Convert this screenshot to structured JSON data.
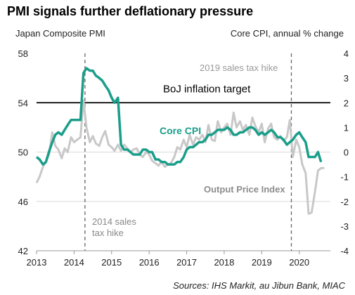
{
  "title": "PMI signals further deflationary pressure",
  "left_axis_label": "Japan Composite PMI",
  "right_axis_label": "Core CPI, annual % change",
  "source": "Sources: IHS Markit, au Jibun Bank, MIAC",
  "colors": {
    "core_cpi": "#1a9e8a",
    "output_price": "#c8c8c8",
    "target": "#000000",
    "events": "#666666",
    "grid": "#d9d9d9"
  },
  "chart_data": {
    "type": "line",
    "title": "PMI signals further deflationary pressure",
    "xlabel": "",
    "ylabel_left": "Japan Composite PMI",
    "ylabel_right": "Core CPI, annual % change",
    "xlim": [
      2013.0,
      2020.83
    ],
    "ylim_left": [
      42,
      58
    ],
    "ylim_right": [
      -4,
      4
    ],
    "yticks_left": [
      42,
      46,
      50,
      54,
      58
    ],
    "yticks_right": [
      -4,
      -3,
      -2,
      -1,
      0,
      1,
      2,
      3,
      4
    ],
    "xticks": [
      2013,
      2014,
      2015,
      2016,
      2017,
      2018,
      2019,
      2020
    ],
    "grid": "horizontal",
    "legend": "inline labels",
    "series": [
      {
        "name": "Core CPI",
        "axis": "right",
        "points": [
          [
            2013.0,
            -0.2
          ],
          [
            2013.08,
            -0.3
          ],
          [
            2013.17,
            -0.5
          ],
          [
            2013.25,
            -0.4
          ],
          [
            2013.33,
            0.0
          ],
          [
            2013.42,
            0.4
          ],
          [
            2013.5,
            0.7
          ],
          [
            2013.58,
            0.8
          ],
          [
            2013.67,
            0.7
          ],
          [
            2013.75,
            0.9
          ],
          [
            2013.83,
            1.1
          ],
          [
            2013.92,
            1.3
          ],
          [
            2014.0,
            1.3
          ],
          [
            2014.08,
            1.3
          ],
          [
            2014.17,
            1.3
          ],
          [
            2014.25,
            3.2
          ],
          [
            2014.33,
            3.4
          ],
          [
            2014.42,
            3.3
          ],
          [
            2014.5,
            3.3
          ],
          [
            2014.58,
            3.1
          ],
          [
            2014.67,
            3.0
          ],
          [
            2014.75,
            2.9
          ],
          [
            2014.83,
            2.7
          ],
          [
            2014.92,
            2.5
          ],
          [
            2015.0,
            2.2
          ],
          [
            2015.08,
            2.0
          ],
          [
            2015.17,
            2.2
          ],
          [
            2015.25,
            0.3
          ],
          [
            2015.33,
            0.1
          ],
          [
            2015.42,
            0.1
          ],
          [
            2015.5,
            0.0
          ],
          [
            2015.58,
            -0.1
          ],
          [
            2015.67,
            -0.1
          ],
          [
            2015.75,
            -0.1
          ],
          [
            2015.83,
            0.1
          ],
          [
            2015.92,
            0.1
          ],
          [
            2016.0,
            0.0
          ],
          [
            2016.08,
            0.0
          ],
          [
            2016.17,
            -0.3
          ],
          [
            2016.25,
            -0.3
          ],
          [
            2016.33,
            -0.4
          ],
          [
            2016.42,
            -0.4
          ],
          [
            2016.5,
            -0.5
          ],
          [
            2016.58,
            -0.5
          ],
          [
            2016.67,
            -0.5
          ],
          [
            2016.75,
            -0.4
          ],
          [
            2016.83,
            -0.4
          ],
          [
            2016.92,
            -0.2
          ],
          [
            2017.0,
            0.1
          ],
          [
            2017.08,
            0.2
          ],
          [
            2017.17,
            0.2
          ],
          [
            2017.25,
            0.3
          ],
          [
            2017.33,
            0.4
          ],
          [
            2017.42,
            0.4
          ],
          [
            2017.5,
            0.5
          ],
          [
            2017.58,
            0.7
          ],
          [
            2017.67,
            0.7
          ],
          [
            2017.75,
            0.8
          ],
          [
            2017.83,
            0.9
          ],
          [
            2017.92,
            0.9
          ],
          [
            2018.0,
            0.9
          ],
          [
            2018.08,
            1.0
          ],
          [
            2018.17,
            0.9
          ],
          [
            2018.25,
            0.7
          ],
          [
            2018.33,
            0.7
          ],
          [
            2018.42,
            0.8
          ],
          [
            2018.5,
            0.8
          ],
          [
            2018.58,
            0.9
          ],
          [
            2018.67,
            1.0
          ],
          [
            2018.75,
            1.0
          ],
          [
            2018.83,
            0.9
          ],
          [
            2018.92,
            0.7
          ],
          [
            2019.0,
            0.8
          ],
          [
            2019.08,
            0.7
          ],
          [
            2019.17,
            0.8
          ],
          [
            2019.25,
            0.9
          ],
          [
            2019.33,
            0.8
          ],
          [
            2019.42,
            0.6
          ],
          [
            2019.5,
            0.6
          ],
          [
            2019.58,
            0.5
          ],
          [
            2019.67,
            0.3
          ],
          [
            2019.75,
            0.4
          ],
          [
            2019.83,
            0.5
          ],
          [
            2019.92,
            0.7
          ],
          [
            2020.0,
            0.8
          ],
          [
            2020.08,
            0.6
          ],
          [
            2020.17,
            0.4
          ],
          [
            2020.25,
            -0.2
          ],
          [
            2020.33,
            -0.2
          ],
          [
            2020.42,
            -0.2
          ],
          [
            2020.5,
            0.0
          ],
          [
            2020.58,
            -0.4
          ]
        ]
      },
      {
        "name": "Output Price Index",
        "axis": "left",
        "points": [
          [
            2013.0,
            47.5
          ],
          [
            2013.08,
            48.0
          ],
          [
            2013.17,
            48.8
          ],
          [
            2013.25,
            49.2
          ],
          [
            2013.33,
            49.8
          ],
          [
            2013.42,
            51.6
          ],
          [
            2013.5,
            50.5
          ],
          [
            2013.58,
            50.2
          ],
          [
            2013.67,
            49.5
          ],
          [
            2013.75,
            50.3
          ],
          [
            2013.83,
            50.0
          ],
          [
            2013.92,
            51.2
          ],
          [
            2014.0,
            50.8
          ],
          [
            2014.08,
            51.0
          ],
          [
            2014.17,
            51.2
          ],
          [
            2014.25,
            54.2
          ],
          [
            2014.33,
            52.0
          ],
          [
            2014.42,
            50.8
          ],
          [
            2014.5,
            51.3
          ],
          [
            2014.58,
            50.7
          ],
          [
            2014.67,
            50.5
          ],
          [
            2014.75,
            51.2
          ],
          [
            2014.83,
            51.7
          ],
          [
            2014.92,
            50.6
          ],
          [
            2015.0,
            50.4
          ],
          [
            2015.08,
            50.1
          ],
          [
            2015.17,
            50.6
          ],
          [
            2015.25,
            50.1
          ],
          [
            2015.33,
            50.6
          ],
          [
            2015.42,
            50.3
          ],
          [
            2015.5,
            50.0
          ],
          [
            2015.58,
            50.2
          ],
          [
            2015.67,
            50.3
          ],
          [
            2015.75,
            49.8
          ],
          [
            2015.83,
            49.6
          ],
          [
            2015.92,
            50.0
          ],
          [
            2016.0,
            49.8
          ],
          [
            2016.08,
            49.3
          ],
          [
            2016.17,
            49.1
          ],
          [
            2016.25,
            48.9
          ],
          [
            2016.33,
            49.2
          ],
          [
            2016.42,
            48.8
          ],
          [
            2016.5,
            49.0
          ],
          [
            2016.58,
            49.1
          ],
          [
            2016.67,
            49.6
          ],
          [
            2016.75,
            50.4
          ],
          [
            2016.83,
            50.2
          ],
          [
            2016.92,
            51.0
          ],
          [
            2017.0,
            50.4
          ],
          [
            2017.08,
            51.4
          ],
          [
            2017.17,
            50.6
          ],
          [
            2017.25,
            51.2
          ],
          [
            2017.33,
            51.0
          ],
          [
            2017.42,
            51.4
          ],
          [
            2017.5,
            50.8
          ],
          [
            2017.58,
            52.2
          ],
          [
            2017.67,
            51.0
          ],
          [
            2017.75,
            50.9
          ],
          [
            2017.83,
            52.5
          ],
          [
            2017.92,
            51.6
          ],
          [
            2018.0,
            52.0
          ],
          [
            2018.08,
            52.3
          ],
          [
            2018.17,
            51.4
          ],
          [
            2018.25,
            53.2
          ],
          [
            2018.33,
            52.0
          ],
          [
            2018.42,
            52.5
          ],
          [
            2018.5,
            51.8
          ],
          [
            2018.58,
            52.2
          ],
          [
            2018.67,
            51.4
          ],
          [
            2018.75,
            52.8
          ],
          [
            2018.83,
            52.1
          ],
          [
            2018.92,
            51.6
          ],
          [
            2019.0,
            52.3
          ],
          [
            2019.08,
            50.8
          ],
          [
            2019.17,
            51.9
          ],
          [
            2019.25,
            52.3
          ],
          [
            2019.33,
            51.2
          ],
          [
            2019.42,
            51.0
          ],
          [
            2019.5,
            51.3
          ],
          [
            2019.58,
            50.9
          ],
          [
            2019.67,
            51.2
          ],
          [
            2019.75,
            52.6
          ],
          [
            2019.83,
            49.6
          ],
          [
            2019.92,
            51.0
          ],
          [
            2020.0,
            50.4
          ],
          [
            2020.08,
            49.0
          ],
          [
            2020.17,
            48.3
          ],
          [
            2020.25,
            45.0
          ],
          [
            2020.33,
            45.1
          ],
          [
            2020.42,
            46.8
          ],
          [
            2020.5,
            48.5
          ],
          [
            2020.58,
            48.7
          ],
          [
            2020.67,
            48.7
          ]
        ]
      }
    ],
    "reference_line": {
      "label": "BoJ inflation target",
      "axis": "right",
      "value": 2.0
    },
    "annotations": [
      {
        "label": "Core CPI"
      },
      {
        "label": "Output Price Index"
      },
      {
        "label": "2014 sales tax hike",
        "x": 2014.29
      },
      {
        "label": "2019 sales tax hike",
        "x": 2019.79
      }
    ],
    "annotation_lines": [
      "2014 sales",
      "tax hike"
    ]
  }
}
